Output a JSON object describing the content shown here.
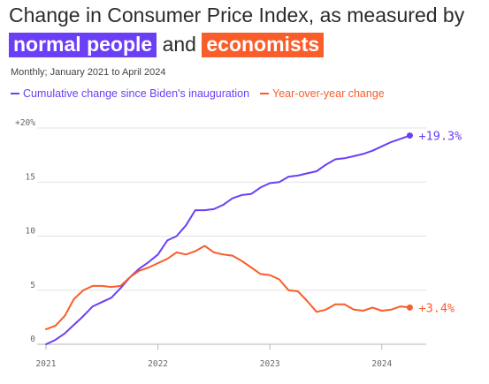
{
  "title": {
    "prefix": "Change in Consumer Price Index, as measured by",
    "highlight1": "normal people",
    "connector": "and",
    "highlight2": "economists"
  },
  "subtitle": "Monthly; January 2021 to April 2024",
  "colors": {
    "cumulative": "#6b3ff5",
    "yoy": "#f95d2a",
    "grid": "#e3e3e3",
    "axis": "#b5b5b5"
  },
  "chart_data": {
    "type": "line",
    "xlabel": "",
    "ylabel": "",
    "ylim": [
      0,
      20
    ],
    "y_ticks": [
      {
        "value": 0,
        "label": "0"
      },
      {
        "value": 5,
        "label": "5"
      },
      {
        "value": 10,
        "label": "10"
      },
      {
        "value": 15,
        "label": "15"
      },
      {
        "value": 20,
        "label": "+20%"
      }
    ],
    "x_ticks": [
      "2021",
      "2022",
      "2023",
      "2024"
    ],
    "legend_position": "top-left",
    "grid": true,
    "x": [
      "2021-01",
      "2021-02",
      "2021-03",
      "2021-04",
      "2021-05",
      "2021-06",
      "2021-07",
      "2021-08",
      "2021-09",
      "2021-10",
      "2021-11",
      "2021-12",
      "2022-01",
      "2022-02",
      "2022-03",
      "2022-04",
      "2022-05",
      "2022-06",
      "2022-07",
      "2022-08",
      "2022-09",
      "2022-10",
      "2022-11",
      "2022-12",
      "2023-01",
      "2023-02",
      "2023-03",
      "2023-04",
      "2023-05",
      "2023-06",
      "2023-07",
      "2023-08",
      "2023-09",
      "2023-10",
      "2023-11",
      "2023-12",
      "2024-01",
      "2024-02",
      "2024-03",
      "2024-04"
    ],
    "series": [
      {
        "name": "Cumulative change since Biden's inauguration",
        "end_label": "+19.3%",
        "values": [
          0.0,
          0.4,
          1.0,
          1.8,
          2.6,
          3.5,
          3.9,
          4.3,
          5.2,
          6.2,
          7.0,
          7.6,
          8.3,
          9.6,
          10.0,
          11.0,
          12.4,
          12.4,
          12.5,
          12.9,
          13.5,
          13.8,
          13.9,
          14.5,
          14.9,
          15.0,
          15.5,
          15.6,
          15.8,
          16.0,
          16.6,
          17.1,
          17.2,
          17.4,
          17.6,
          17.9,
          18.3,
          18.7,
          19.0,
          19.3
        ]
      },
      {
        "name": "Year-over-year change",
        "end_label": "+3.4%",
        "values": [
          1.4,
          1.7,
          2.6,
          4.2,
          5.0,
          5.4,
          5.4,
          5.3,
          5.4,
          6.2,
          6.8,
          7.1,
          7.5,
          7.9,
          8.5,
          8.3,
          8.6,
          9.1,
          8.5,
          8.3,
          8.2,
          7.7,
          7.1,
          6.5,
          6.4,
          6.0,
          5.0,
          4.9,
          4.0,
          3.0,
          3.2,
          3.7,
          3.7,
          3.2,
          3.1,
          3.4,
          3.1,
          3.2,
          3.5,
          3.4
        ]
      }
    ]
  }
}
